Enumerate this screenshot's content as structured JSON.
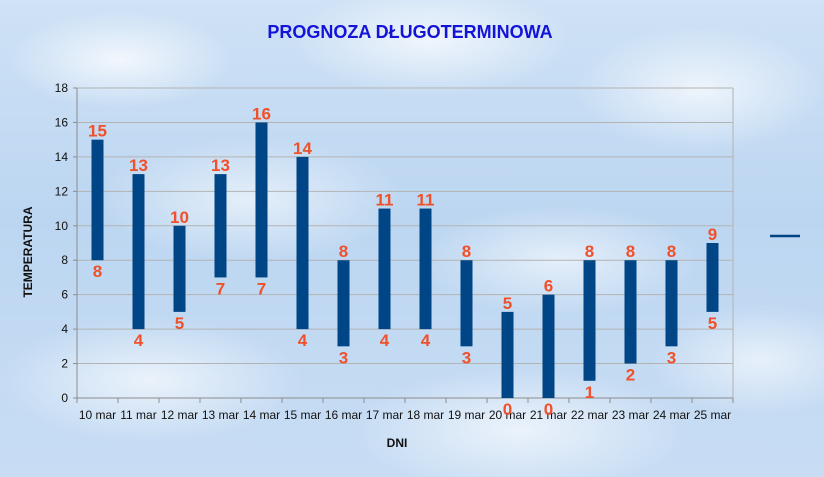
{
  "chart_data": {
    "type": "bar",
    "subtype": "floating-range",
    "title": "PROGNOZA DŁUGOTERMINOWA",
    "xlabel": "DNI",
    "ylabel": "TEMPERATURA",
    "ylim": [
      0,
      18
    ],
    "yticks": [
      0,
      2,
      4,
      6,
      8,
      10,
      12,
      14,
      16,
      18
    ],
    "grid": true,
    "legend": "right",
    "colors": {
      "bar": "#004586",
      "label": "#f0502a",
      "title": "#1414d8",
      "grid": "#b3b3b3"
    },
    "categories": [
      "10 mar",
      "11 mar",
      "12 mar",
      "13 mar",
      "14 mar",
      "15 mar",
      "16 mar",
      "17 mar",
      "18 mar",
      "19 mar",
      "20 mar",
      "21 mar",
      "22 mar",
      "23 mar",
      "24 mar",
      "25 mar"
    ],
    "series": [
      {
        "values": [
          15,
          13,
          10,
          13,
          16,
          14,
          8,
          11,
          11,
          8,
          5,
          6,
          8,
          8,
          8,
          9
        ]
      },
      {
        "values": [
          8,
          4,
          5,
          7,
          7,
          4,
          3,
          4,
          4,
          3,
          0,
          0,
          1,
          2,
          3,
          5
        ]
      }
    ]
  }
}
